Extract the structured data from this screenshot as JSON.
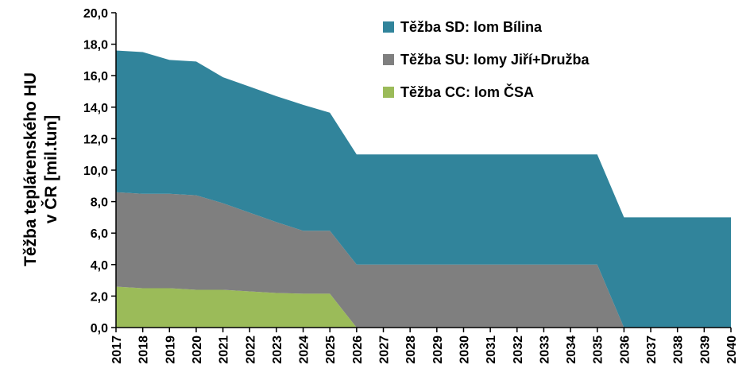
{
  "chart_data": {
    "type": "area",
    "stacked": true,
    "ylabel_lines": [
      "Těžba teplárenského HU",
      "v ČR [mil.tun]"
    ],
    "xlabel": "",
    "ylim": [
      0,
      20
    ],
    "y_ticks": [
      "0,0",
      "2,0",
      "4,0",
      "6,0",
      "8,0",
      "10,0",
      "12,0",
      "14,0",
      "16,0",
      "18,0",
      "20,0"
    ],
    "grid": false,
    "legend_position": "top-right",
    "x": [
      "2017",
      "2018",
      "2019",
      "2020",
      "2021",
      "2022",
      "2023",
      "2024",
      "2025",
      "2026",
      "2027",
      "2028",
      "2029",
      "2030",
      "2031",
      "2032",
      "2033",
      "2034",
      "2035",
      "2036",
      "2037",
      "2038",
      "2039",
      "2040"
    ],
    "series": [
      {
        "name": "Těžba CC: lom ČSA",
        "color": "#9bbb59",
        "values": [
          2.6,
          2.5,
          2.5,
          2.4,
          2.4,
          2.3,
          2.2,
          2.15,
          2.15,
          0,
          0,
          0,
          0,
          0,
          0,
          0,
          0,
          0,
          0,
          0,
          0,
          0,
          0,
          0
        ]
      },
      {
        "name": "Těžba SU: lomy Jiří+Družba",
        "color": "#7f7f7f",
        "values": [
          6.0,
          6.0,
          6.0,
          6.0,
          5.5,
          5.0,
          4.5,
          4.0,
          4.0,
          4.0,
          4.0,
          4.0,
          4.0,
          4.0,
          4.0,
          4.0,
          4.0,
          4.0,
          4.0,
          0,
          0,
          0,
          0,
          0
        ]
      },
      {
        "name": "Těžba SD: lom Bílina",
        "color": "#31849b",
        "values": [
          9.0,
          9.0,
          8.5,
          8.5,
          8.0,
          8.0,
          8.0,
          8.0,
          7.5,
          7.0,
          7.0,
          7.0,
          7.0,
          7.0,
          7.0,
          7.0,
          7.0,
          7.0,
          7.0,
          7.0,
          7.0,
          7.0,
          7.0,
          7.0
        ]
      }
    ],
    "legend_order": [
      2,
      1,
      0
    ]
  }
}
